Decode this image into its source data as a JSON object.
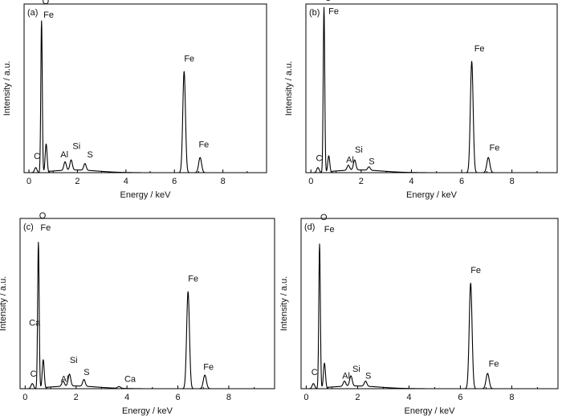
{
  "chart_data": [
    {
      "type": "line",
      "panel_label": "(a)",
      "xlabel": "Energy / keV",
      "ylabel": "Intensity / a.u.",
      "xlim": [
        -0.2,
        9.8
      ],
      "ylim": [
        0,
        100
      ],
      "x_ticks": [
        0,
        2,
        4,
        6,
        8
      ],
      "grid": false,
      "peaks": [
        {
          "x": 0.28,
          "y": 3,
          "w": 0.05
        },
        {
          "x": 0.52,
          "y": 90,
          "w": 0.03
        },
        {
          "x": 0.71,
          "y": 17,
          "w": 0.04
        },
        {
          "x": 1.49,
          "y": 5,
          "w": 0.05
        },
        {
          "x": 1.74,
          "y": 6,
          "w": 0.05
        },
        {
          "x": 2.31,
          "y": 4,
          "w": 0.05
        },
        {
          "x": 6.4,
          "y": 60,
          "w": 0.055
        },
        {
          "x": 7.06,
          "y": 9,
          "w": 0.06
        }
      ],
      "annotations": [
        {
          "text": "O",
          "x": 0.55,
          "y": 100
        },
        {
          "text": "Fe",
          "x": 0.6,
          "y": 92
        },
        {
          "text": "C",
          "x": 0.2,
          "y": 8
        },
        {
          "text": "Al",
          "x": 1.3,
          "y": 9
        },
        {
          "text": "Si",
          "x": 1.8,
          "y": 14
        },
        {
          "text": "S",
          "x": 2.4,
          "y": 9
        },
        {
          "text": "Fe",
          "x": 6.4,
          "y": 66
        },
        {
          "text": "Fe",
          "x": 7.0,
          "y": 15
        }
      ]
    },
    {
      "type": "line",
      "panel_label": "(b)",
      "xlabel": "Energy / keV",
      "ylabel": "Intensity / a.u.",
      "xlim": [
        -0.2,
        9.8
      ],
      "ylim": [
        0,
        100
      ],
      "x_ticks": [
        0,
        2,
        4,
        6,
        8
      ],
      "grid": false,
      "peaks": [
        {
          "x": 0.28,
          "y": 3,
          "w": 0.05
        },
        {
          "x": 0.52,
          "y": 98,
          "w": 0.03
        },
        {
          "x": 0.71,
          "y": 10,
          "w": 0.04
        },
        {
          "x": 1.49,
          "y": 3,
          "w": 0.05
        },
        {
          "x": 1.74,
          "y": 6,
          "w": 0.05
        },
        {
          "x": 2.31,
          "y": 2,
          "w": 0.05
        },
        {
          "x": 6.4,
          "y": 66,
          "w": 0.055
        },
        {
          "x": 7.06,
          "y": 9,
          "w": 0.06
        }
      ],
      "annotations": [
        {
          "text": "O",
          "x": 0.55,
          "y": 102
        },
        {
          "text": "Fe",
          "x": 0.7,
          "y": 94
        },
        {
          "text": "C",
          "x": 0.2,
          "y": 7
        },
        {
          "text": "Al",
          "x": 1.4,
          "y": 6
        },
        {
          "text": "Si",
          "x": 1.75,
          "y": 12
        },
        {
          "text": "S",
          "x": 2.3,
          "y": 5
        },
        {
          "text": "Fe",
          "x": 6.5,
          "y": 72
        },
        {
          "text": "Fe",
          "x": 7.1,
          "y": 13
        }
      ]
    },
    {
      "type": "line",
      "panel_label": "(c)",
      "xlabel": "Energy / keV",
      "ylabel": "Intensity / a.u.",
      "xlim": [
        -0.2,
        9.8
      ],
      "ylim": [
        0,
        100
      ],
      "x_ticks": [
        0,
        2,
        4,
        6,
        8
      ],
      "grid": false,
      "peaks": [
        {
          "x": 0.28,
          "y": 3,
          "w": 0.05
        },
        {
          "x": 0.52,
          "y": 86,
          "w": 0.03
        },
        {
          "x": 0.71,
          "y": 17,
          "w": 0.04
        },
        {
          "x": 1.49,
          "y": 3,
          "w": 0.05
        },
        {
          "x": 1.74,
          "y": 7,
          "w": 0.05
        },
        {
          "x": 2.31,
          "y": 4,
          "w": 0.05
        },
        {
          "x": 3.69,
          "y": 1,
          "w": 0.06
        },
        {
          "x": 6.4,
          "y": 57,
          "w": 0.055
        },
        {
          "x": 7.06,
          "y": 8,
          "w": 0.06
        }
      ],
      "annotations": [
        {
          "text": "O",
          "x": 0.55,
          "y": 100
        },
        {
          "text": "Fe",
          "x": 0.6,
          "y": 93
        },
        {
          "text": "Ca",
          "x": 0.15,
          "y": 37
        },
        {
          "text": "C",
          "x": 0.2,
          "y": 7
        },
        {
          "text": "Al",
          "x": 1.4,
          "y": 4
        },
        {
          "text": "Si",
          "x": 1.75,
          "y": 15
        },
        {
          "text": "S",
          "x": 2.3,
          "y": 8
        },
        {
          "text": "Ca",
          "x": 3.9,
          "y": 4
        },
        {
          "text": "Fe",
          "x": 6.4,
          "y": 63
        },
        {
          "text": "Fe",
          "x": 7.0,
          "y": 11
        }
      ]
    },
    {
      "type": "line",
      "panel_label": "(d)",
      "xlabel": "Energy / keV",
      "ylabel": "Intensity / a.u.",
      "xlim": [
        -0.2,
        9.8
      ],
      "ylim": [
        0,
        100
      ],
      "x_ticks": [
        0,
        2,
        4,
        6,
        8
      ],
      "grid": false,
      "peaks": [
        {
          "x": 0.28,
          "y": 3,
          "w": 0.05
        },
        {
          "x": 0.52,
          "y": 85,
          "w": 0.03
        },
        {
          "x": 0.71,
          "y": 15,
          "w": 0.04
        },
        {
          "x": 1.49,
          "y": 3,
          "w": 0.05
        },
        {
          "x": 1.74,
          "y": 6,
          "w": 0.05
        },
        {
          "x": 2.31,
          "y": 3,
          "w": 0.05
        },
        {
          "x": 6.4,
          "y": 62,
          "w": 0.055
        },
        {
          "x": 7.06,
          "y": 9,
          "w": 0.06
        }
      ],
      "annotations": [
        {
          "text": "O",
          "x": 0.55,
          "y": 99
        },
        {
          "text": "Fe",
          "x": 0.7,
          "y": 92
        },
        {
          "text": "C",
          "x": 0.2,
          "y": 8
        },
        {
          "text": "Al",
          "x": 1.4,
          "y": 6
        },
        {
          "text": "Si",
          "x": 1.8,
          "y": 10
        },
        {
          "text": "S",
          "x": 2.3,
          "y": 6
        },
        {
          "text": "Fe",
          "x": 6.4,
          "y": 68
        },
        {
          "text": "Fe",
          "x": 7.1,
          "y": 13
        }
      ]
    }
  ]
}
